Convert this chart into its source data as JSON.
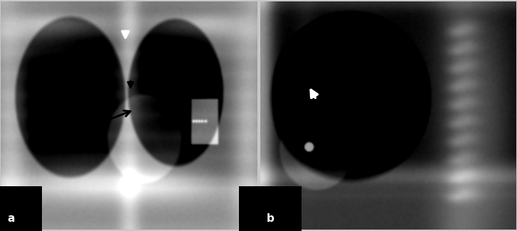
{
  "figure_width": 7.27,
  "figure_height": 3.25,
  "dpi": 100,
  "bg_color": "#c8c8c8",
  "label_font_size": 11,
  "label_bg": "#000000",
  "label_fg": "#ffffff",
  "panel_a_label": "a",
  "panel_b_label": "b",
  "arrow_color_black": "#000000",
  "arrow_color_white": "#ffffff",
  "arrow_lw": 2.0,
  "arrow_ms": 14
}
